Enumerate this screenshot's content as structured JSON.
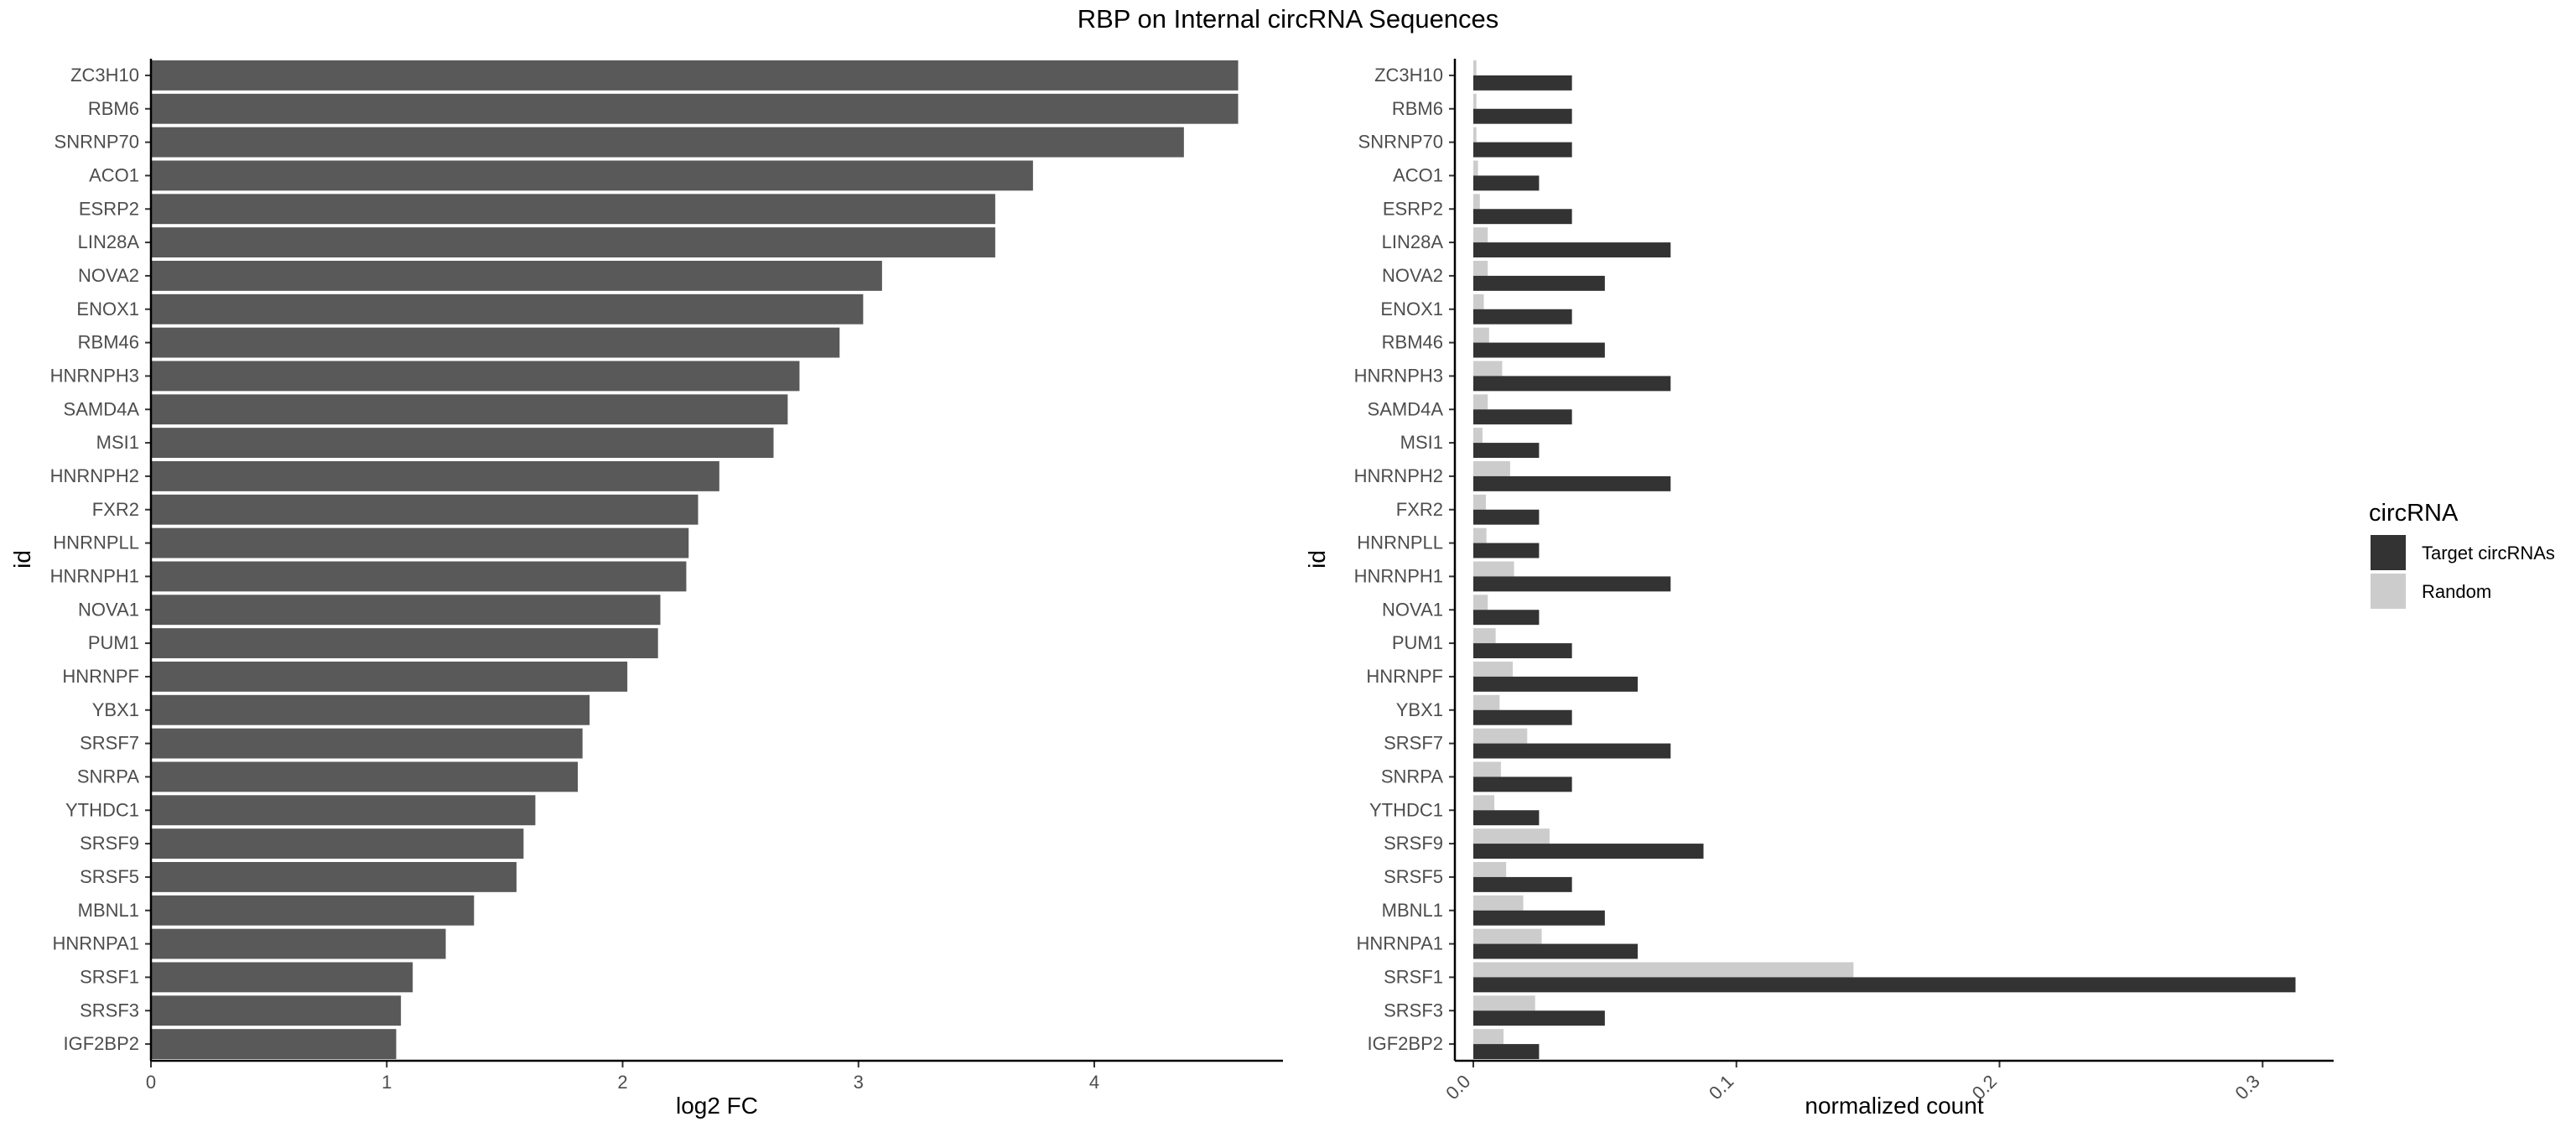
{
  "title": "RBP on Internal circRNA Sequences",
  "chart_data": [
    {
      "type": "bar",
      "orientation": "horizontal",
      "xlabel": "log2 FC",
      "ylabel": "id",
      "xlim": [
        0,
        4.8
      ],
      "x_ticks": [
        "0",
        "1",
        "2",
        "3",
        "4"
      ],
      "categories": [
        "ZC3H10",
        "RBM6",
        "SNRNP70",
        "ACO1",
        "ESRP2",
        "LIN28A",
        "NOVA2",
        "ENOX1",
        "RBM46",
        "HNRNPH3",
        "SAMD4A",
        "MSI1",
        "HNRNPH2",
        "FXR2",
        "HNRNPLL",
        "HNRNPH1",
        "NOVA1",
        "PUM1",
        "HNRNPF",
        "YBX1",
        "SRSF7",
        "SNRPA",
        "YTHDC1",
        "SRSF9",
        "SRSF5",
        "MBNL1",
        "HNRNPA1",
        "SRSF1",
        "SRSF3",
        "IGF2BP2"
      ],
      "values": [
        4.61,
        4.61,
        4.38,
        3.74,
        3.58,
        3.58,
        3.1,
        3.02,
        2.92,
        2.75,
        2.7,
        2.64,
        2.41,
        2.32,
        2.28,
        2.27,
        2.16,
        2.15,
        2.02,
        1.86,
        1.83,
        1.81,
        1.63,
        1.58,
        1.55,
        1.37,
        1.25,
        1.11,
        1.06,
        1.04
      ],
      "color": "#595959",
      "grid": false
    },
    {
      "type": "bar",
      "orientation": "horizontal",
      "grouped": true,
      "xlabel": "normalized count",
      "ylabel": "id",
      "xlim": [
        -0.007,
        0.327
      ],
      "x_ticks": [
        "0.0",
        "0.1",
        "0.2",
        "0.3"
      ],
      "categories": [
        "ZC3H10",
        "RBM6",
        "SNRNP70",
        "ACO1",
        "ESRP2",
        "LIN28A",
        "NOVA2",
        "ENOX1",
        "RBM46",
        "HNRNPH3",
        "SAMD4A",
        "MSI1",
        "HNRNPH2",
        "FXR2",
        "HNRNPLL",
        "HNRNPH1",
        "NOVA1",
        "PUM1",
        "HNRNPF",
        "YBX1",
        "SRSF7",
        "SNRPA",
        "YTHDC1",
        "SRSF9",
        "SRSF5",
        "MBNL1",
        "HNRNPA1",
        "SRSF1",
        "SRSF3",
        "IGF2BP2"
      ],
      "series": [
        {
          "name": "Target circRNAs",
          "color": "#333333",
          "values": [
            0.0375,
            0.0375,
            0.0375,
            0.025,
            0.0375,
            0.075,
            0.05,
            0.0375,
            0.05,
            0.075,
            0.0375,
            0.025,
            0.075,
            0.025,
            0.025,
            0.075,
            0.025,
            0.0375,
            0.0625,
            0.0375,
            0.075,
            0.0375,
            0.025,
            0.0875,
            0.0375,
            0.05,
            0.0625,
            0.3125,
            0.05,
            0.025
          ]
        },
        {
          "name": "Random",
          "color": "#cccccc",
          "values": [
            0.0012,
            0.0012,
            0.0012,
            0.0018,
            0.0025,
            0.0055,
            0.0055,
            0.004,
            0.006,
            0.011,
            0.0055,
            0.0035,
            0.014,
            0.0048,
            0.005,
            0.0155,
            0.0055,
            0.0085,
            0.015,
            0.01,
            0.0205,
            0.0105,
            0.008,
            0.029,
            0.0125,
            0.019,
            0.026,
            0.1445,
            0.0235,
            0.0115
          ]
        }
      ],
      "legend": {
        "title": "circRNA",
        "position": "right",
        "entries": [
          "Target circRNAs",
          "Random"
        ]
      },
      "grid": false
    }
  ]
}
